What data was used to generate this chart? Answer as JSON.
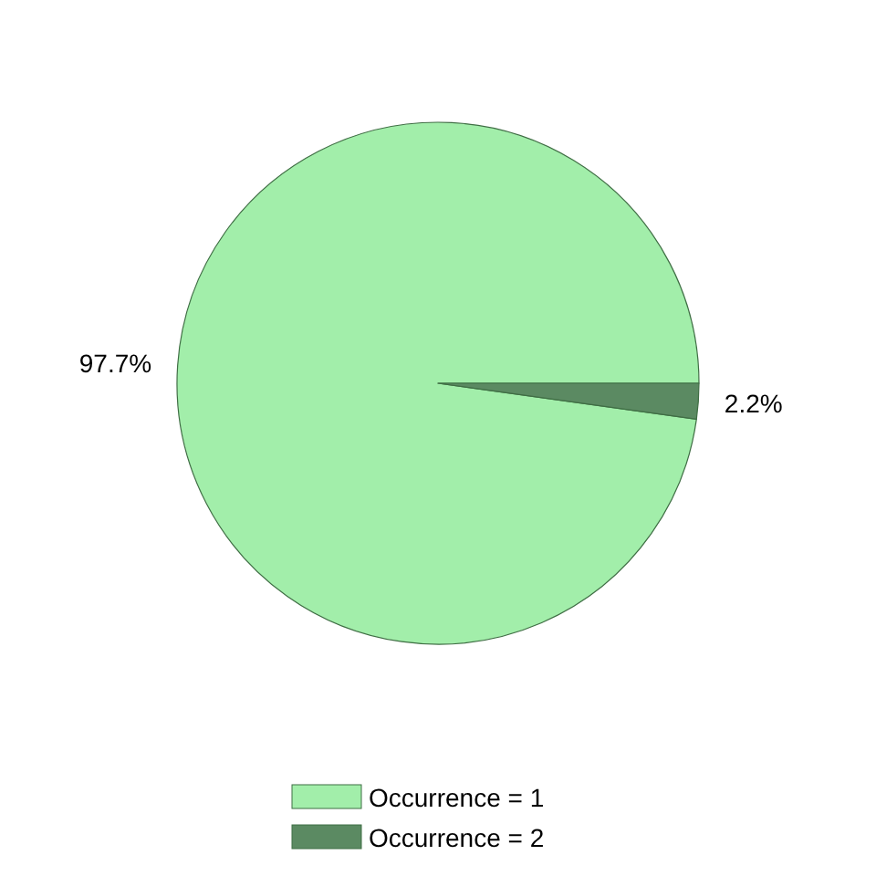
{
  "chart_data": {
    "type": "pie",
    "categories": [
      "Occurrence = 1",
      "Occurrence = 2"
    ],
    "values": [
      97.7,
      2.2
    ],
    "colors": [
      "#a2eeaa",
      "#5b8a62"
    ],
    "value_labels": [
      "97.7%",
      "2.2%"
    ],
    "legend": "bottom"
  }
}
